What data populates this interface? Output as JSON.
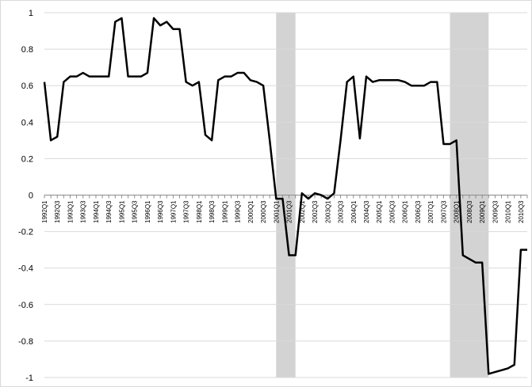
{
  "chart_data": {
    "type": "line",
    "title": "",
    "xlabel": "",
    "ylabel": "",
    "ylim": [
      -1,
      1
    ],
    "yticks": [
      1,
      0.8,
      0.6,
      0.4,
      0.2,
      0,
      -0.2,
      -0.4,
      -0.6,
      -0.8,
      -1
    ],
    "ytick_labels": [
      "1",
      "0.8",
      "0.6",
      "0.4",
      "0.2",
      "0",
      "-0.2",
      "-0.4",
      "-0.6",
      "-0.8",
      "-1"
    ],
    "grid": "horizontal",
    "legend": "none",
    "line_color": "#000000",
    "shade_color": "#d3d3d3",
    "grid_color": "#d9d9d9",
    "shaded_periods": [
      {
        "start": "2001Q1",
        "end": "2001Q4"
      },
      {
        "start": "2007Q4",
        "end": "2009Q2"
      }
    ],
    "x_tick_labels": [
      "1992Q1",
      "1992Q3",
      "1993Q1",
      "1993Q3",
      "1994Q1",
      "1994Q3",
      "1995Q1",
      "1995Q3",
      "1996Q1",
      "1996Q3",
      "1997Q1",
      "1997Q3",
      "1998Q1",
      "1998Q3",
      "1999Q1",
      "1999Q3",
      "2000Q1",
      "2000Q3",
      "2001Q1",
      "2001Q3",
      "2002Q1",
      "2002Q3",
      "2003Q1",
      "2003Q3",
      "2004Q1",
      "2004Q3",
      "2005Q1",
      "2005Q3",
      "2006Q1",
      "2006Q3",
      "2007Q1",
      "2007Q3",
      "2008Q1",
      "2008Q3",
      "2009Q1",
      "2009Q3",
      "2010Q1",
      "2010Q3"
    ],
    "x": [
      "1992Q1",
      "1992Q2",
      "1992Q3",
      "1992Q4",
      "1993Q1",
      "1993Q2",
      "1993Q3",
      "1993Q4",
      "1994Q1",
      "1994Q2",
      "1994Q3",
      "1994Q4",
      "1995Q1",
      "1995Q2",
      "1995Q3",
      "1995Q4",
      "1996Q1",
      "1996Q2",
      "1996Q3",
      "1996Q4",
      "1997Q1",
      "1997Q2",
      "1997Q3",
      "1997Q4",
      "1998Q1",
      "1998Q2",
      "1998Q3",
      "1998Q4",
      "1999Q1",
      "1999Q2",
      "1999Q3",
      "1999Q4",
      "2000Q1",
      "2000Q2",
      "2000Q3",
      "2000Q4",
      "2001Q1",
      "2001Q2",
      "2001Q3",
      "2001Q4",
      "2002Q1",
      "2002Q2",
      "2002Q3",
      "2002Q4",
      "2003Q1",
      "2003Q2",
      "2003Q3",
      "2003Q4",
      "2004Q1",
      "2004Q2",
      "2004Q3",
      "2004Q4",
      "2005Q1",
      "2005Q2",
      "2005Q3",
      "2005Q4",
      "2006Q1",
      "2006Q2",
      "2006Q3",
      "2006Q4",
      "2007Q1",
      "2007Q2",
      "2007Q3",
      "2007Q4",
      "2008Q1",
      "2008Q2",
      "2008Q3",
      "2008Q4",
      "2009Q1",
      "2009Q2",
      "2009Q3",
      "2009Q4",
      "2010Q1",
      "2010Q2",
      "2010Q3",
      "2010Q4"
    ],
    "series": [
      {
        "values": [
          0.62,
          0.3,
          0.32,
          0.62,
          0.65,
          0.65,
          0.67,
          0.65,
          0.65,
          0.65,
          0.65,
          0.95,
          0.97,
          0.65,
          0.65,
          0.65,
          0.67,
          0.97,
          0.93,
          0.95,
          0.91,
          0.91,
          0.62,
          0.6,
          0.62,
          0.33,
          0.3,
          0.63,
          0.65,
          0.65,
          0.67,
          0.67,
          0.63,
          0.62,
          0.6,
          0.3,
          -0.02,
          -0.02,
          -0.33,
          -0.33,
          0.01,
          -0.02,
          0.01,
          0.0,
          -0.02,
          0.01,
          0.3,
          0.62,
          0.65,
          0.31,
          0.65,
          0.62,
          0.63,
          0.63,
          0.63,
          0.63,
          0.62,
          0.6,
          0.6,
          0.6,
          0.62,
          0.62,
          0.28,
          0.28,
          0.3,
          -0.33,
          -0.35,
          -0.37,
          -0.37,
          -0.98,
          -0.97,
          -0.96,
          -0.95,
          -0.93,
          -0.3,
          -0.3
        ]
      }
    ]
  }
}
